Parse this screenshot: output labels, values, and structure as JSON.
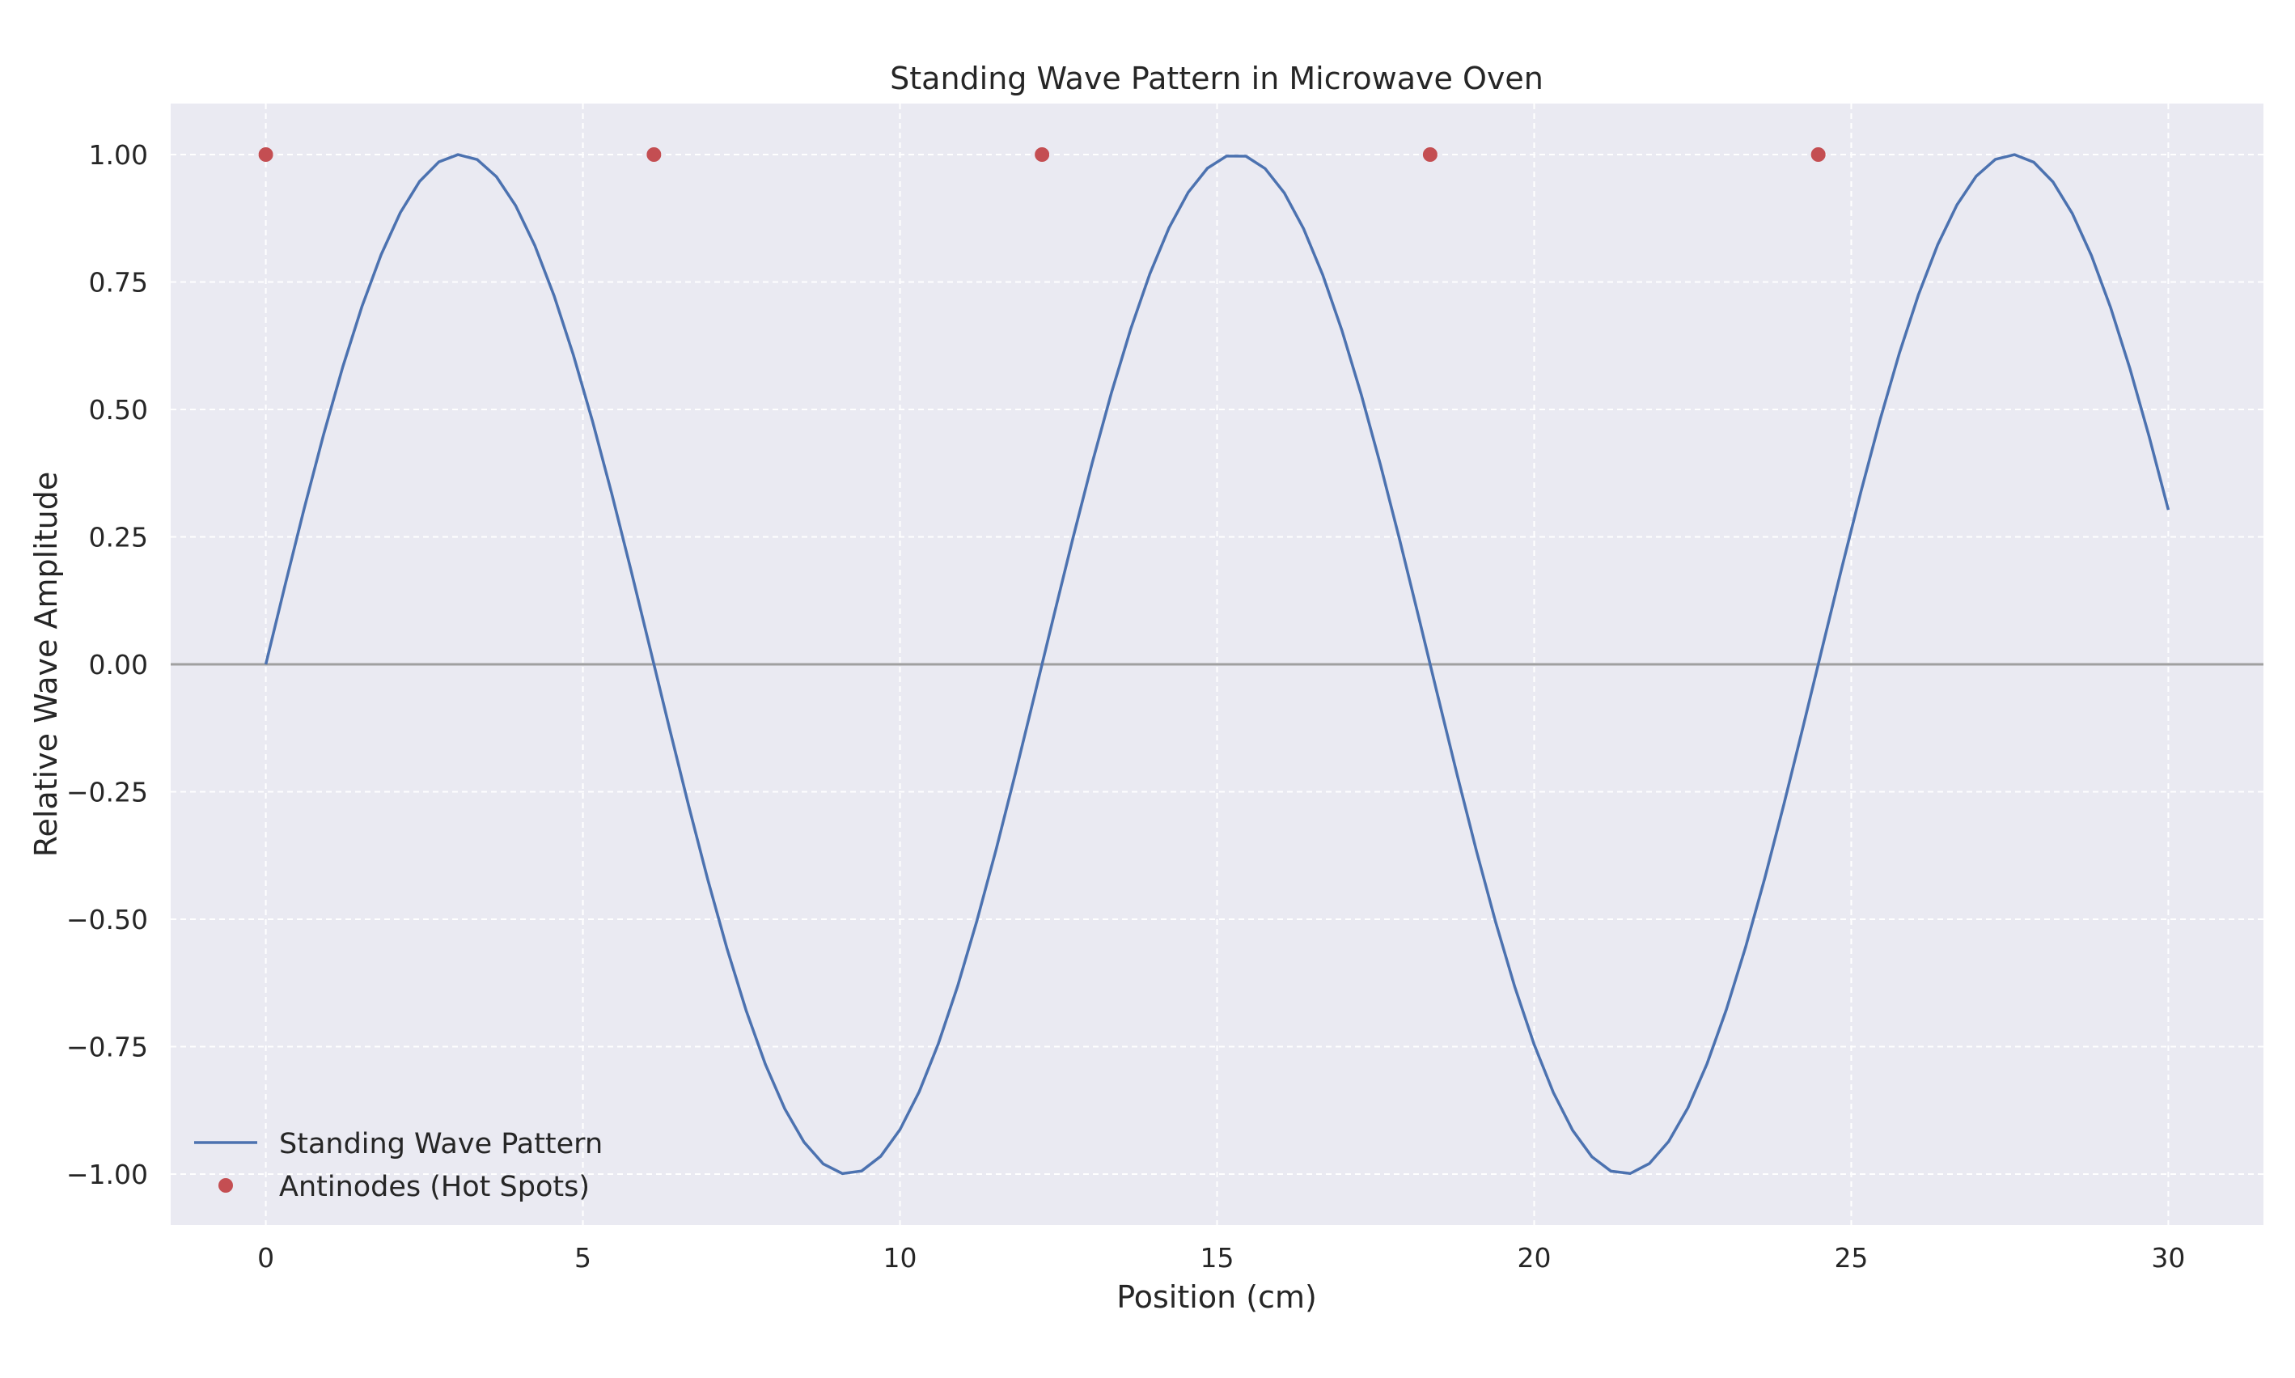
{
  "chart_data": {
    "type": "line",
    "title": "Standing Wave Pattern in Microwave Oven",
    "xlabel": "Position (cm)",
    "ylabel": "Relative Wave Amplitude",
    "xlim": [
      -1.5,
      31.5
    ],
    "ylim": [
      -1.1,
      1.1
    ],
    "x_ticks": [
      0,
      5,
      10,
      15,
      20,
      25,
      30
    ],
    "x_tick_labels": [
      "0",
      "5",
      "10",
      "15",
      "20",
      "25",
      "30"
    ],
    "y_ticks": [
      1.0,
      0.75,
      0.5,
      0.25,
      0.0,
      -0.25,
      -0.5,
      -0.75,
      -1.0
    ],
    "y_tick_labels": [
      "1.00",
      "0.75",
      "0.50",
      "0.25",
      "0.00",
      "−0.25",
      "−0.50",
      "−0.75",
      "−1.00"
    ],
    "grid": true,
    "legend_position": "lower-left",
    "background_color": "#eaeaf2",
    "zero_line_color": "#a0a0a0",
    "series": [
      {
        "name": "Standing Wave Pattern",
        "kind": "line",
        "color": "#4c72b0",
        "function": "sin",
        "amplitude": 1.0,
        "wavelength": 12.24,
        "x_start": 0,
        "x_end": 30,
        "samples": 100
      },
      {
        "name": "Antinodes (Hot Spots)",
        "kind": "scatter",
        "color": "#c44e52",
        "x": [
          0,
          6.12,
          12.24,
          18.36,
          24.48
        ],
        "y": [
          1,
          1,
          1,
          1,
          1
        ]
      }
    ]
  }
}
